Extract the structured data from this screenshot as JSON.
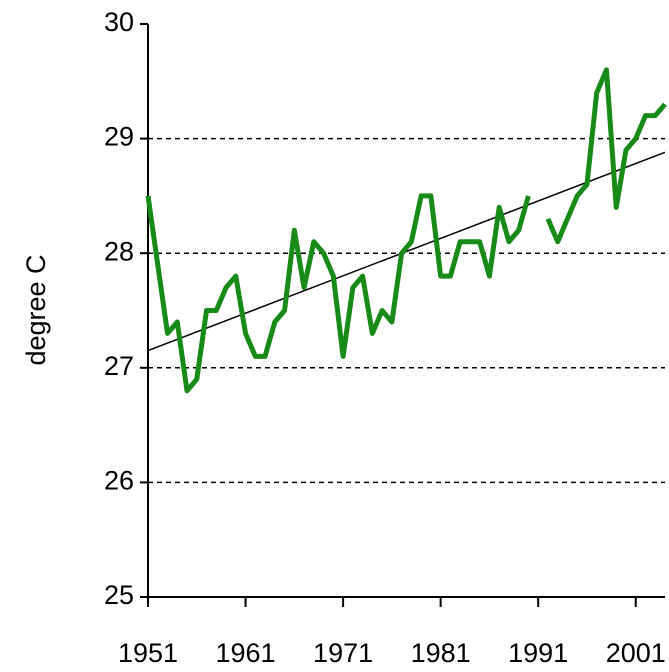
{
  "chart_data": {
    "type": "line",
    "y_label": "degree C",
    "x": [
      1951,
      1952,
      1953,
      1954,
      1955,
      1956,
      1957,
      1958,
      1959,
      1960,
      1961,
      1962,
      1963,
      1964,
      1965,
      1966,
      1967,
      1968,
      1969,
      1970,
      1971,
      1972,
      1973,
      1974,
      1975,
      1976,
      1977,
      1978,
      1979,
      1980,
      1981,
      1982,
      1983,
      1984,
      1985,
      1986,
      1987,
      1988,
      1989,
      1990,
      1991,
      1992,
      1993,
      1994,
      1995,
      1996,
      1997,
      1998,
      1999,
      2000,
      2001,
      2002,
      2003,
      2004
    ],
    "series": [
      {
        "color": "#178a17",
        "values": [
          28.5,
          27.9,
          27.3,
          27.4,
          26.8,
          26.9,
          27.5,
          27.5,
          27.7,
          27.8,
          27.3,
          27.1,
          27.1,
          27.4,
          27.5,
          28.2,
          27.7,
          28.1,
          28.0,
          27.8,
          27.1,
          27.7,
          27.8,
          27.3,
          27.5,
          27.4,
          28.0,
          28.1,
          28.5,
          28.5,
          27.8,
          27.8,
          28.1,
          28.1,
          28.1,
          27.8,
          28.4,
          28.1,
          28.2,
          28.5,
          null,
          28.3,
          28.1,
          28.3,
          28.5,
          28.6,
          29.4,
          29.6,
          28.4,
          28.9,
          29.0,
          29.2,
          29.2,
          29.3
        ]
      }
    ],
    "trend": {
      "color": "#000000",
      "x": [
        1951,
        2004
      ],
      "values": [
        27.15,
        28.88
      ]
    },
    "xlim": [
      1951,
      2004
    ],
    "xticks": [
      1951,
      1961,
      1971,
      1981,
      1991,
      2001
    ],
    "ylim": [
      25,
      30
    ],
    "yticks": [
      25,
      26,
      27,
      28,
      29,
      30
    ],
    "grid": true
  }
}
